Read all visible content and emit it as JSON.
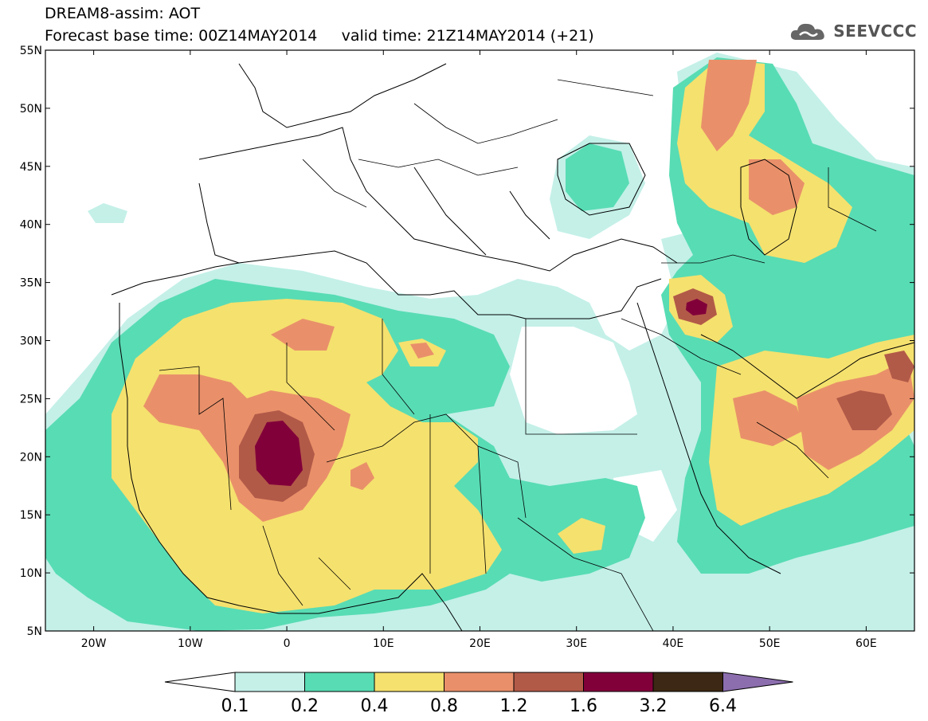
{
  "title": {
    "line1": "DREAM8-assim: AOT",
    "line2_base": "Forecast base time: 00Z14MAY2014",
    "line2_valid": "valid time: 21Z14MAY2014 (+21)"
  },
  "logo": {
    "text": "SEEVCCC",
    "icon": "cloud-icon"
  },
  "map": {
    "lat_range": [
      5,
      55
    ],
    "lon_range": [
      -25,
      65
    ],
    "lat_ticks": [
      "55N",
      "50N",
      "45N",
      "40N",
      "35N",
      "30N",
      "25N",
      "20N",
      "15N",
      "10N",
      "5N"
    ],
    "lon_ticks": [
      "20W",
      "10W",
      "0",
      "10E",
      "20E",
      "30E",
      "40E",
      "50E",
      "60E"
    ]
  },
  "colorbar": {
    "labels": [
      "0.1",
      "0.2",
      "0.4",
      "0.8",
      "1.2",
      "1.6",
      "3.2",
      "6.4"
    ],
    "colors": [
      "#c4f0e8",
      "#58dcb4",
      "#f5e16e",
      "#e9906a",
      "#b25a48",
      "#82003a",
      "#3c2814",
      "#8c6eae"
    ],
    "under_color": "#ffffff"
  }
}
